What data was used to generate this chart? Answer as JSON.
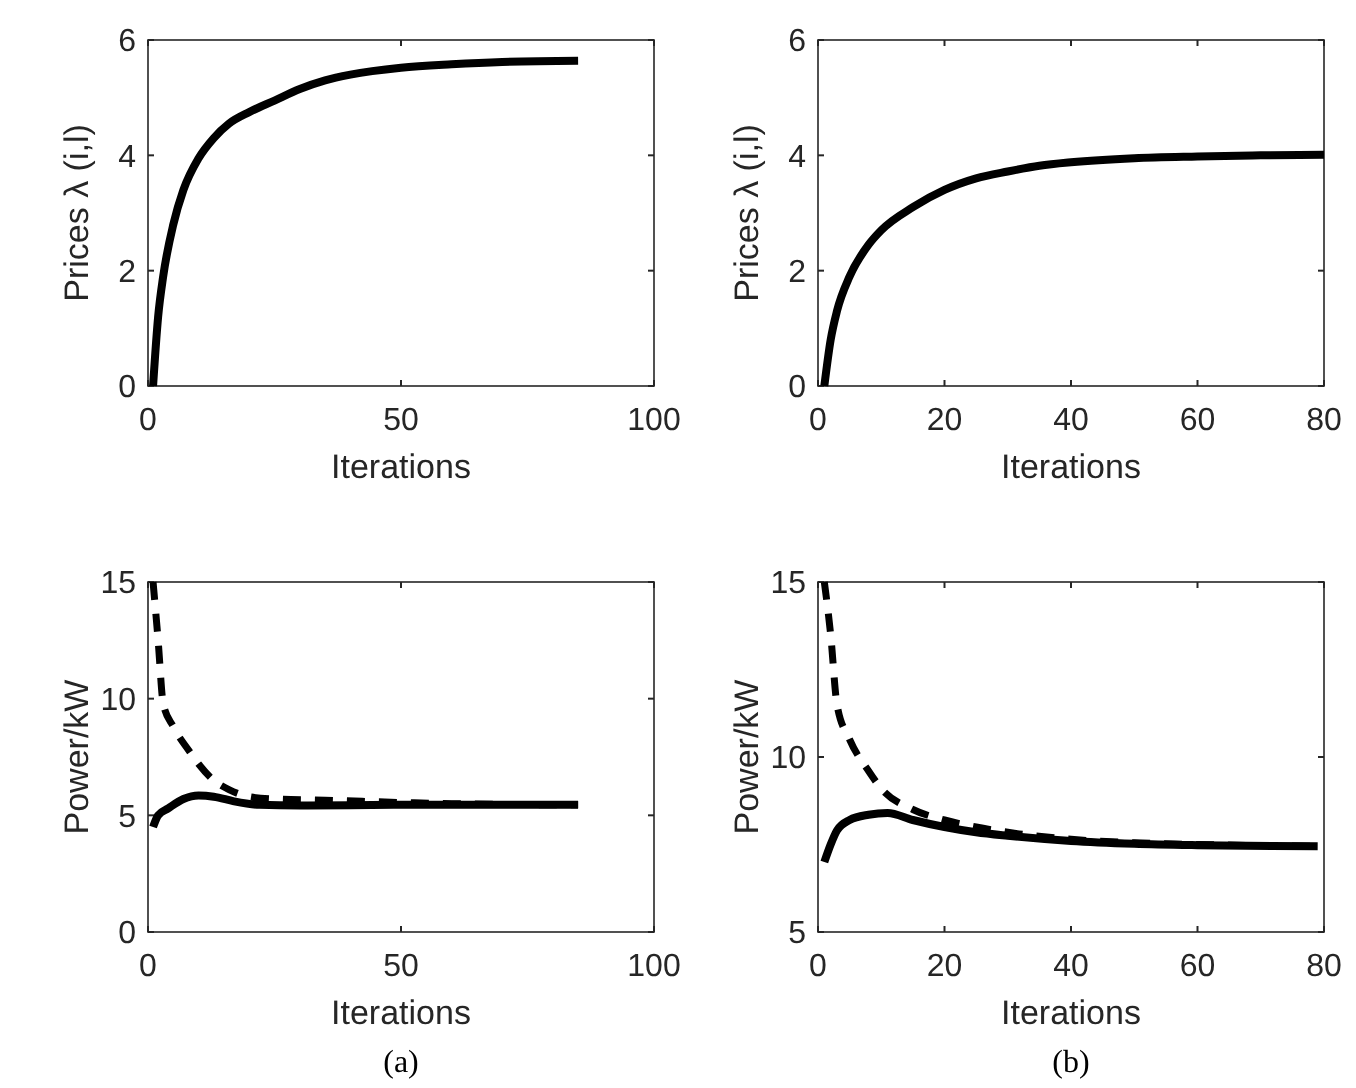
{
  "chart_data": [
    {
      "type": "line",
      "xlabel": "Iterations",
      "ylabel": "Prices λ (i,l)",
      "xlim": [
        0,
        100
      ],
      "xticks": [
        0,
        50,
        100
      ],
      "ylim": [
        0,
        6
      ],
      "yticks": [
        0,
        2,
        4,
        6
      ],
      "series": [
        {
          "color": "#000000",
          "line_style": "solid",
          "x": [
            1,
            2,
            3,
            5,
            7,
            10,
            13,
            16,
            20,
            25,
            30,
            35,
            40,
            50,
            60,
            70,
            85
          ],
          "values": [
            0,
            1.2,
            1.9,
            2.8,
            3.4,
            3.95,
            4.3,
            4.55,
            4.75,
            4.95,
            5.15,
            5.3,
            5.4,
            5.52,
            5.58,
            5.62,
            5.64
          ]
        }
      ]
    },
    {
      "type": "line",
      "xlabel": "Iterations",
      "ylabel": "Prices λ (i,l)",
      "xlim": [
        0,
        80
      ],
      "xticks": [
        0,
        20,
        40,
        60,
        80
      ],
      "ylim": [
        0,
        6
      ],
      "yticks": [
        0,
        2,
        4,
        6
      ],
      "series": [
        {
          "color": "#000000",
          "line_style": "solid",
          "x": [
            1,
            2,
            3,
            5,
            8,
            10,
            15,
            20,
            25,
            30,
            35,
            40,
            50,
            60,
            70,
            80
          ],
          "values": [
            0,
            0.8,
            1.3,
            1.9,
            2.45,
            2.7,
            3.1,
            3.4,
            3.6,
            3.72,
            3.82,
            3.88,
            3.95,
            3.98,
            4.0,
            4.01
          ]
        }
      ]
    },
    {
      "type": "line",
      "xlabel": "Iterations",
      "ylabel": "Power/kW",
      "xlim": [
        0,
        100
      ],
      "xticks": [
        0,
        50,
        100
      ],
      "ylim": [
        0,
        15
      ],
      "yticks": [
        0,
        5,
        10,
        15
      ],
      "annotations": [
        "(a)"
      ],
      "series": [
        {
          "color": "#000000",
          "line_style": "dashed",
          "x": [
            1,
            2,
            3,
            5,
            8,
            10,
            13,
            16,
            20,
            25,
            35,
            50,
            60,
            85
          ],
          "values": [
            15,
            12.5,
            9.8,
            8.8,
            7.8,
            7.2,
            6.5,
            6.1,
            5.8,
            5.7,
            5.65,
            5.55,
            5.5,
            5.45
          ]
        },
        {
          "color": "#000000",
          "line_style": "solid",
          "x": [
            1,
            2,
            4,
            7,
            10,
            13,
            17,
            22,
            30,
            50,
            85
          ],
          "values": [
            4.5,
            5.0,
            5.3,
            5.7,
            5.85,
            5.8,
            5.6,
            5.45,
            5.42,
            5.45,
            5.45
          ]
        }
      ]
    },
    {
      "type": "line",
      "xlabel": "Iterations",
      "ylabel": "Power/kW",
      "xlim": [
        0,
        80
      ],
      "xticks": [
        0,
        20,
        40,
        60,
        80
      ],
      "ylim": [
        5,
        15
      ],
      "yticks": [
        5,
        10,
        15
      ],
      "annotations": [
        "(b)"
      ],
      "series": [
        {
          "color": "#000000",
          "line_style": "dashed",
          "x": [
            1,
            2,
            3,
            5,
            8,
            10,
            15,
            20,
            25,
            30,
            40,
            50,
            60,
            79
          ],
          "values": [
            15,
            13.5,
            11.5,
            10.5,
            9.6,
            9.1,
            8.5,
            8.2,
            8.0,
            7.85,
            7.65,
            7.55,
            7.5,
            7.45
          ]
        },
        {
          "color": "#000000",
          "line_style": "solid",
          "x": [
            1,
            2,
            3,
            5,
            8,
            11,
            15,
            20,
            25,
            30,
            40,
            50,
            60,
            79
          ],
          "values": [
            7.0,
            7.5,
            7.9,
            8.2,
            8.35,
            8.4,
            8.2,
            8.0,
            7.85,
            7.75,
            7.6,
            7.52,
            7.48,
            7.45
          ]
        }
      ]
    }
  ]
}
